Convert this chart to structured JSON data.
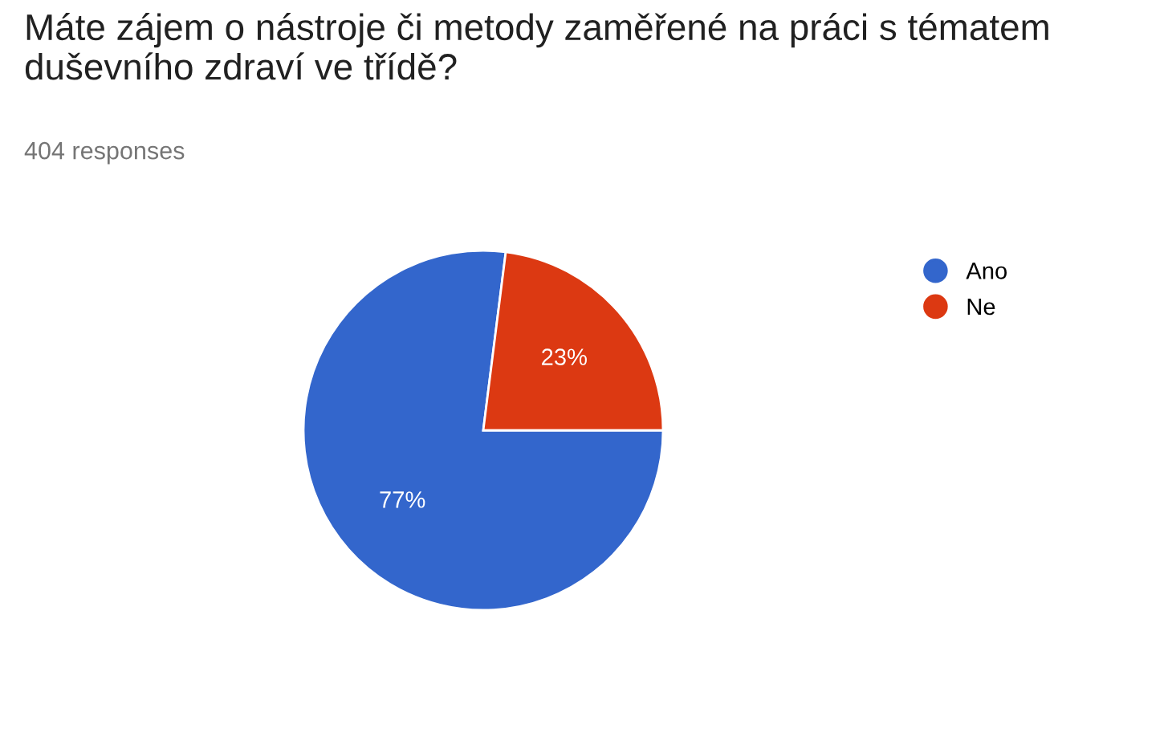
{
  "chart_data": {
    "type": "pie",
    "title": "Máte zájem o nástroje či metody zaměřené na práci s tématem duševního zdraví ve třídě?",
    "subtitle": "404 responses",
    "categories": [
      "Ano",
      "Ne"
    ],
    "values": [
      77,
      23
    ],
    "colors": [
      "#3366cc",
      "#dc3912"
    ],
    "value_labels": [
      "77%",
      "23%"
    ],
    "legend": "right"
  }
}
